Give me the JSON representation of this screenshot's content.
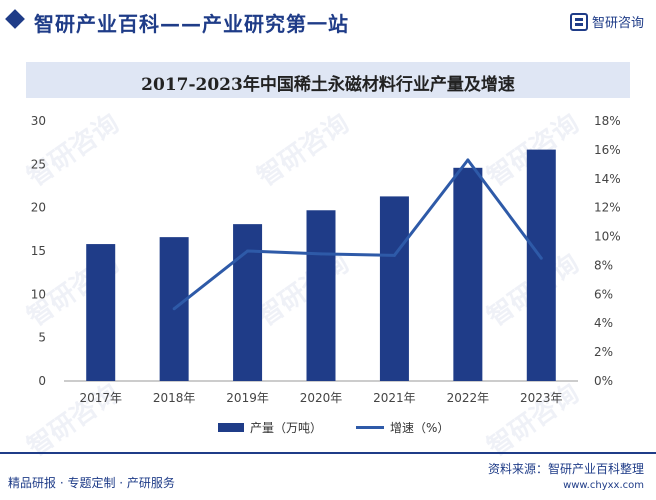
{
  "header": {
    "title": "智研产业百科——产业研究第一站",
    "brand_name": "智研咨询"
  },
  "watermark": {
    "text": "智研咨询"
  },
  "chart_data": {
    "type": "bar+line",
    "title": "2017-2023年中国稀土永磁材料行业产量及增速",
    "categories": [
      "2017年",
      "2018年",
      "2019年",
      "2020年",
      "2021年",
      "2022年",
      "2023年"
    ],
    "series": [
      {
        "name": "产量（万吨）",
        "type": "bar",
        "axis": "left",
        "values": [
          15.8,
          16.6,
          18.1,
          19.7,
          21.3,
          24.6,
          26.7
        ]
      },
      {
        "name": "增速（%）",
        "type": "line",
        "axis": "right",
        "values": [
          null,
          5.0,
          9.0,
          8.8,
          8.7,
          15.3,
          8.5
        ]
      }
    ],
    "y_left": {
      "min": 0,
      "max": 30,
      "ticks": [
        "0",
        "5",
        "10",
        "15",
        "20",
        "25",
        "30"
      ]
    },
    "y_right": {
      "min": 0,
      "max": 18,
      "ticks": [
        "0%",
        "2%",
        "4%",
        "6%",
        "8%",
        "10%",
        "12%",
        "14%",
        "16%",
        "18%"
      ]
    },
    "grid": false,
    "legend_position": "bottom",
    "colors": {
      "bar": "#1f3c88",
      "line": "#2e5aa8"
    }
  },
  "footer": {
    "left": "精品研报 · 专题定制 · 产研服务",
    "source": "资料来源：智研产业百科整理",
    "url": "www.chyxx.com"
  }
}
